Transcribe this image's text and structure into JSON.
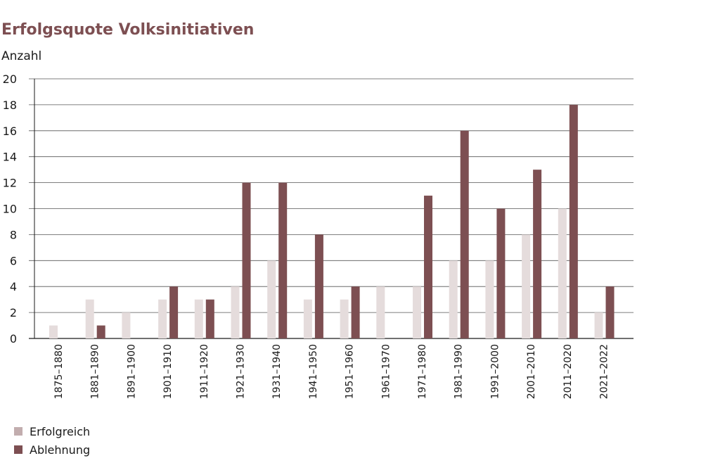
{
  "chart_data": {
    "type": "bar",
    "title": "Erfolgsquote Volksinitiativen",
    "ylabel": "Anzahl",
    "xlabel": "",
    "ylim": [
      0,
      20
    ],
    "yticks": [
      0,
      2,
      4,
      6,
      8,
      10,
      12,
      14,
      16,
      18,
      20
    ],
    "grid": true,
    "legend_position": "bottom-left",
    "categories": [
      "1875–1880",
      "1881–1890",
      "1891–1900",
      "1901–1910",
      "1911–1920",
      "1921–1930",
      "1931–1940",
      "1941–1950",
      "1951–1960",
      "1961–1970",
      "1971–1980",
      "1981–1990",
      "1991–2000",
      "2001–2010",
      "2011–2020",
      "2021–2022"
    ],
    "series": [
      {
        "name": "Erfolgreich",
        "color": "#e5dcdc",
        "legend_color": "#c2adae",
        "values": [
          1,
          3,
          2,
          3,
          3,
          4,
          6,
          3,
          3,
          4,
          4,
          6,
          6,
          8,
          10,
          2
        ]
      },
      {
        "name": "Ablehnung",
        "color": "#7d4f52",
        "legend_color": "#7d4f52",
        "values": [
          0,
          1,
          0,
          4,
          3,
          12,
          12,
          8,
          4,
          0,
          11,
          16,
          10,
          13,
          18,
          4
        ]
      }
    ]
  }
}
